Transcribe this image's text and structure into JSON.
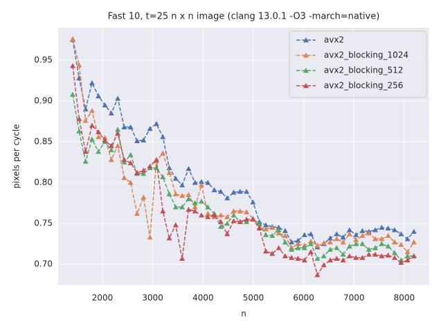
{
  "chart_data": {
    "type": "line",
    "title": "Fast 10, t=25  n x n image (clang 13.0.1 -O3 -march=native)",
    "x_label": "n",
    "y_label": "pixels per cycle",
    "x": [
      1408,
      1536,
      1664,
      1792,
      1920,
      2048,
      2176,
      2304,
      2432,
      2560,
      2688,
      2816,
      2944,
      3072,
      3200,
      3328,
      3456,
      3584,
      3712,
      3840,
      3968,
      4096,
      4224,
      4352,
      4480,
      4608,
      4736,
      4864,
      4992,
      5120,
      5248,
      5376,
      5504,
      5632,
      5760,
      5888,
      6016,
      6144,
      6272,
      6400,
      6528,
      6656,
      6784,
      6912,
      7040,
      7168,
      7296,
      7424,
      7552,
      7680,
      7808,
      7936,
      8064,
      8192
    ],
    "series": [
      {
        "name": "avx2",
        "color": "#4c72b0",
        "values": [
          0.975,
          0.928,
          0.89,
          0.922,
          0.906,
          0.895,
          0.885,
          0.903,
          0.868,
          0.868,
          0.851,
          0.852,
          0.866,
          0.872,
          0.856,
          0.818,
          0.805,
          0.797,
          0.817,
          0.8,
          0.801,
          0.8,
          0.791,
          0.789,
          0.781,
          0.788,
          0.789,
          0.789,
          0.776,
          0.752,
          0.748,
          0.746,
          0.745,
          0.741,
          0.727,
          0.729,
          0.736,
          0.737,
          0.721,
          0.725,
          0.732,
          0.737,
          0.733,
          0.742,
          0.736,
          0.741,
          0.74,
          0.742,
          0.745,
          0.744,
          0.742,
          0.737,
          0.731,
          0.74
        ]
      },
      {
        "name": "avx2_blocking_1024",
        "color": "#dd8452",
        "values": [
          0.976,
          0.944,
          0.876,
          0.888,
          0.856,
          0.855,
          0.828,
          0.845,
          0.806,
          0.8,
          0.762,
          0.782,
          0.733,
          0.826,
          0.836,
          0.812,
          0.786,
          0.784,
          0.785,
          0.77,
          0.797,
          0.762,
          0.758,
          0.76,
          0.758,
          0.765,
          0.765,
          0.764,
          0.756,
          0.745,
          0.743,
          0.745,
          0.738,
          0.735,
          0.72,
          0.725,
          0.723,
          0.728,
          0.723,
          0.726,
          0.727,
          0.731,
          0.727,
          0.737,
          0.73,
          0.735,
          0.738,
          0.731,
          0.731,
          0.735,
          0.727,
          0.724,
          0.715,
          0.727
        ]
      },
      {
        "name": "avx2_blocking_512",
        "color": "#55a868",
        "values": [
          0.908,
          0.863,
          0.826,
          0.853,
          0.838,
          0.85,
          0.84,
          0.865,
          0.825,
          0.834,
          0.811,
          0.811,
          0.818,
          0.818,
          0.807,
          0.786,
          0.77,
          0.77,
          0.78,
          0.775,
          0.777,
          0.77,
          0.762,
          0.746,
          0.75,
          0.76,
          0.752,
          0.752,
          0.755,
          0.75,
          0.736,
          0.735,
          0.742,
          0.727,
          0.718,
          0.72,
          0.72,
          0.725,
          0.707,
          0.71,
          0.718,
          0.72,
          0.712,
          0.722,
          0.725,
          0.725,
          0.718,
          0.72,
          0.725,
          0.722,
          0.714,
          0.705,
          0.71,
          0.71
        ]
      },
      {
        "name": "avx2_blocking_256",
        "color": "#c44e52",
        "values": [
          0.943,
          0.878,
          0.838,
          0.87,
          0.862,
          0.852,
          0.845,
          0.86,
          0.828,
          0.824,
          0.812,
          0.815,
          0.82,
          0.828,
          0.765,
          0.732,
          0.748,
          0.707,
          0.767,
          0.765,
          0.76,
          0.758,
          0.76,
          0.752,
          0.737,
          0.753,
          0.752,
          0.755,
          0.755,
          0.744,
          0.716,
          0.713,
          0.72,
          0.71,
          0.708,
          0.707,
          0.705,
          0.715,
          0.687,
          0.699,
          0.705,
          0.707,
          0.705,
          0.71,
          0.708,
          0.708,
          0.712,
          0.712,
          0.71,
          0.711,
          0.708,
          0.702,
          0.705,
          0.71
        ]
      }
    ],
    "xlim": [
      1119,
      8495
    ],
    "xticks": [
      2000,
      3000,
      4000,
      5000,
      6000,
      7000,
      8000
    ],
    "ylim": [
      0.6746,
      0.9898
    ],
    "yticks": [
      {
        "value": 0.7,
        "label": "0.70"
      },
      0.75,
      {
        "value": 0.8,
        "label": "0.80"
      },
      0.85,
      {
        "value": 0.9,
        "label": "0.90"
      },
      0.95
    ],
    "grid": true,
    "legend": "upper right",
    "line_style": "dashed",
    "marker": "triangle"
  }
}
